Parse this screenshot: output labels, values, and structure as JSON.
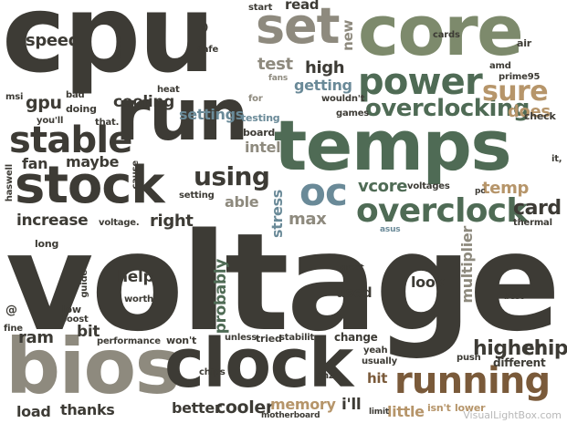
{
  "palette": {
    "dark": "#3d3b35",
    "gray": "#8e8a7e",
    "green": "#4f6b55",
    "olive": "#7d8a6c",
    "tan": "#b6956a",
    "blue": "#6a8a98",
    "brown": "#7a5a3a"
  },
  "credit": "VisualLightBox.com",
  "words": [
    {
      "text": "cpu",
      "weight": 95,
      "color": "dark"
    },
    {
      "text": "set",
      "weight": 38,
      "color": "gray"
    },
    {
      "text": "core",
      "weight": 52,
      "color": "olive"
    },
    {
      "text": "power",
      "weight": 34,
      "color": "green"
    },
    {
      "text": "run",
      "weight": 60,
      "color": "dark"
    },
    {
      "text": "temps",
      "weight": 62,
      "color": "green"
    },
    {
      "text": "stable",
      "weight": 32,
      "color": "dark"
    },
    {
      "text": "stock",
      "weight": 44,
      "color": "dark"
    },
    {
      "text": "using",
      "weight": 22,
      "color": "dark"
    },
    {
      "text": "oc",
      "weight": 34,
      "color": "blue"
    },
    {
      "text": "overclock",
      "weight": 30,
      "color": "green"
    },
    {
      "text": "overclocking",
      "weight": 24,
      "color": "green"
    },
    {
      "text": "sure",
      "weight": 26,
      "color": "tan"
    },
    {
      "text": "voltage",
      "weight": 118,
      "color": "dark"
    },
    {
      "text": "bios",
      "weight": 62,
      "color": "gray"
    },
    {
      "text": "clock",
      "weight": 58,
      "color": "dark"
    },
    {
      "text": "running",
      "weight": 34,
      "color": "brown"
    },
    {
      "text": "card",
      "weight": 18,
      "color": "dark"
    },
    {
      "text": "speed",
      "weight": 15,
      "color": "dark"
    },
    {
      "text": "cooling",
      "weight": 15,
      "color": "dark"
    },
    {
      "text": "gpu",
      "weight": 16,
      "color": "dark"
    },
    {
      "text": "fan",
      "weight": 14,
      "color": "dark"
    },
    {
      "text": "maybe",
      "weight": 13,
      "color": "dark"
    },
    {
      "text": "increase",
      "weight": 14,
      "color": "dark"
    },
    {
      "text": "right",
      "weight": 14,
      "color": "dark"
    },
    {
      "text": "max",
      "weight": 15,
      "color": "gray"
    },
    {
      "text": "able",
      "weight": 13,
      "color": "gray"
    },
    {
      "text": "intel",
      "weight": 13,
      "color": "gray"
    },
    {
      "text": "vcore",
      "weight": 15,
      "color": "green"
    },
    {
      "text": "temp",
      "weight": 14,
      "color": "tan"
    },
    {
      "text": "high",
      "weight": 15,
      "color": "dark"
    },
    {
      "text": "test",
      "weight": 15,
      "color": "gray"
    },
    {
      "text": "getting",
      "weight": 13,
      "color": "blue"
    },
    {
      "text": "settings",
      "weight": 13,
      "color": "blue"
    },
    {
      "text": "does",
      "weight": 14,
      "color": "tan"
    },
    {
      "text": "help",
      "weight": 14,
      "color": "dark"
    },
    {
      "text": "ram",
      "weight": 14,
      "color": "dark"
    },
    {
      "text": "bit",
      "weight": 13,
      "color": "dark"
    },
    {
      "text": "higher",
      "weight": 17,
      "color": "dark"
    },
    {
      "text": "chip",
      "weight": 17,
      "color": "dark"
    },
    {
      "text": "better",
      "weight": 14,
      "color": "dark"
    },
    {
      "text": "cooler",
      "weight": 16,
      "color": "dark"
    },
    {
      "text": "memory",
      "weight": 13,
      "color": "tan"
    },
    {
      "text": "thanks",
      "weight": 13,
      "color": "dark"
    },
    {
      "text": "load",
      "weight": 13,
      "color": "dark"
    },
    {
      "text": "little",
      "weight": 13,
      "color": "tan"
    },
    {
      "text": "look",
      "weight": 13,
      "color": "dark"
    },
    {
      "text": "used",
      "weight": 12,
      "color": "dark"
    },
    {
      "text": "hit",
      "weight": 12,
      "color": "brown"
    },
    {
      "text": "i'll",
      "weight": 13,
      "color": "dark"
    },
    {
      "text": "multiplier",
      "weight": 13,
      "color": "gray"
    },
    {
      "text": "probably",
      "weight": 13,
      "color": "green"
    },
    {
      "text": "stress",
      "weight": 13,
      "color": "blue"
    },
    {
      "text": "read",
      "weight": 12,
      "color": "dark"
    },
    {
      "text": "new",
      "weight": 12,
      "color": "gray"
    },
    {
      "text": "start",
      "weight": 9,
      "color": "dark"
    },
    {
      "text": "case",
      "weight": 9,
      "color": "dark"
    },
    {
      "text": ":)",
      "weight": 9,
      "color": "dark"
    },
    {
      "text": "safe",
      "weight": 9,
      "color": "dark"
    },
    {
      "text": "msi",
      "weight": 9,
      "color": "dark"
    },
    {
      "text": "bad",
      "weight": 9,
      "color": "dark"
    },
    {
      "text": "doing",
      "weight": 9,
      "color": "dark"
    },
    {
      "text": "you'll",
      "weight": 9,
      "color": "dark"
    },
    {
      "text": "heat",
      "weight": 9,
      "color": "dark"
    },
    {
      "text": "that.",
      "weight": 9,
      "color": "dark"
    },
    {
      "text": "cards",
      "weight": 9,
      "color": "dark"
    },
    {
      "text": "air",
      "weight": 9,
      "color": "dark"
    },
    {
      "text": "amd",
      "weight": 9,
      "color": "dark"
    },
    {
      "text": "prime95",
      "weight": 9,
      "color": "dark"
    },
    {
      "text": "check",
      "weight": 9,
      "color": "dark"
    },
    {
      "text": "fans",
      "weight": 9,
      "color": "gray"
    },
    {
      "text": "wouldn't",
      "weight": 9,
      "color": "dark"
    },
    {
      "text": "games",
      "weight": 9,
      "color": "dark"
    },
    {
      "text": "for",
      "weight": 9,
      "color": "gray"
    },
    {
      "text": "testing",
      "weight": 9,
      "color": "blue"
    },
    {
      "text": "board",
      "weight": 9,
      "color": "dark"
    },
    {
      "text": "it,",
      "weight": 9,
      "color": "dark"
    },
    {
      "text": "haswell",
      "weight": 9,
      "color": "dark"
    },
    {
      "text": "cause",
      "weight": 9,
      "color": "dark"
    },
    {
      "text": "setting",
      "weight": 9,
      "color": "dark"
    },
    {
      "text": "voltages",
      "weight": 9,
      "color": "dark"
    },
    {
      "text": "voltage.",
      "weight": 9,
      "color": "dark"
    },
    {
      "text": "pc",
      "weight": 9,
      "color": "dark"
    },
    {
      "text": "thermal",
      "weight": 9,
      "color": "dark"
    },
    {
      "text": "asus",
      "weight": 9,
      "color": "blue"
    },
    {
      "text": "long",
      "weight": 9,
      "color": "dark"
    },
    {
      "text": "guide",
      "weight": 9,
      "color": "dark"
    },
    {
      "text": "worth",
      "weight": 9,
      "color": "dark"
    },
    {
      "text": "great",
      "weight": 9,
      "color": "dark"
    },
    {
      "text": "best",
      "weight": 9,
      "color": "dark"
    },
    {
      "text": "low",
      "weight": 9,
      "color": "dark"
    },
    {
      "text": "boost",
      "weight": 9,
      "color": "dark"
    },
    {
      "text": "fine",
      "weight": 9,
      "color": "dark"
    },
    {
      "text": "performance",
      "weight": 9,
      "color": "dark"
    },
    {
      "text": "won't",
      "weight": 9,
      "color": "dark"
    },
    {
      "text": "unless",
      "weight": 9,
      "color": "dark"
    },
    {
      "text": "tried",
      "weight": 9,
      "color": "dark"
    },
    {
      "text": "stability",
      "weight": 9,
      "color": "dark"
    },
    {
      "text": "change",
      "weight": 9,
      "color": "dark"
    },
    {
      "text": "yeah",
      "weight": 9,
      "color": "dark"
    },
    {
      "text": "usually",
      "weight": 9,
      "color": "dark"
    },
    {
      "text": "push",
      "weight": 9,
      "color": "dark"
    },
    {
      "text": "different",
      "weight": 9,
      "color": "dark"
    },
    {
      "text": "chips",
      "weight": 9,
      "color": "dark"
    },
    {
      "text": "ghz",
      "weight": 9,
      "color": "dark"
    },
    {
      "text": "motherboard",
      "weight": 9,
      "color": "dark"
    },
    {
      "text": "limit",
      "weight": 9,
      "color": "dark"
    },
    {
      "text": "isn't",
      "weight": 9,
      "color": "tan"
    },
    {
      "text": "lower",
      "weight": 9,
      "color": "tan"
    },
    {
      "text": "@",
      "weight": 9,
      "color": "dark"
    }
  ]
}
